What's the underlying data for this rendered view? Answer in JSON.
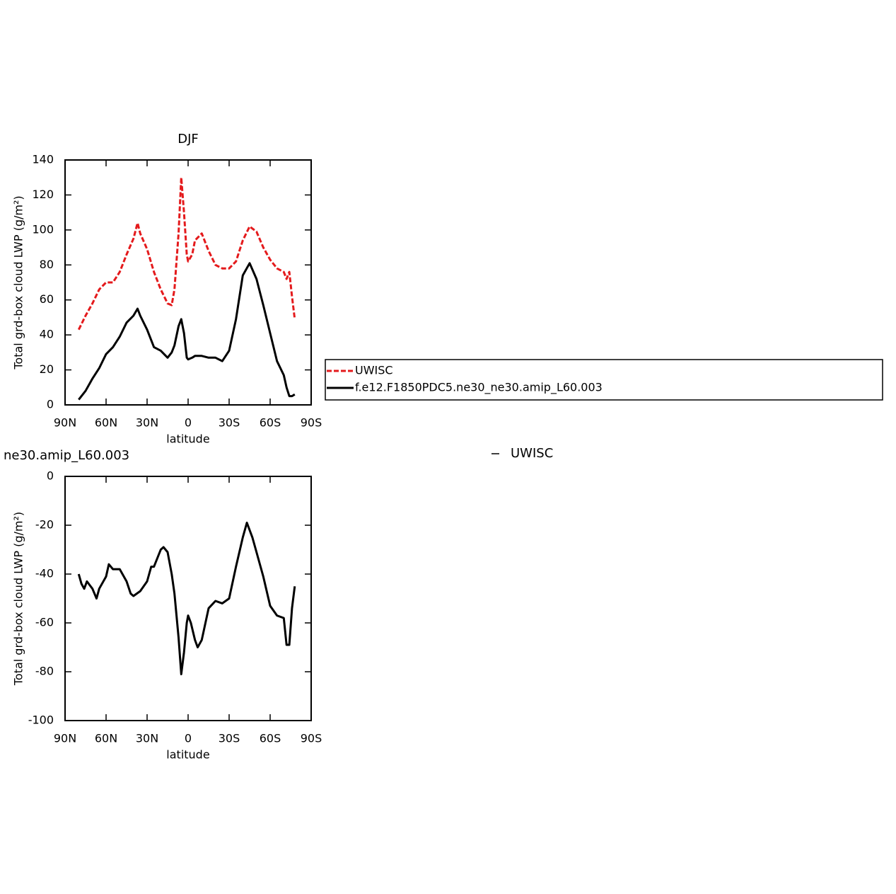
{
  "chart_data": [
    {
      "type": "line",
      "title": "DJF",
      "xlabel": "latitude",
      "ylabel": "Total grd-box cloud LWP (g/m²)",
      "x": [
        80,
        75,
        70,
        65,
        60,
        55,
        50,
        45,
        40,
        37,
        35,
        30,
        25,
        20,
        15,
        12,
        10,
        7,
        5,
        3,
        1,
        0,
        -3,
        -5,
        -10,
        -15,
        -20,
        -25,
        -30,
        -35,
        -40,
        -45,
        -50,
        -55,
        -60,
        -65,
        -70,
        -72,
        -74,
        -76,
        -78
      ],
      "xlim": [
        90,
        -90
      ],
      "xticks": [
        {
          "value": 90,
          "label": "90N"
        },
        {
          "value": 60,
          "label": "60N"
        },
        {
          "value": 30,
          "label": "30N"
        },
        0,
        {
          "value": -30,
          "label": "30S"
        },
        {
          "value": -60,
          "label": "60S"
        },
        {
          "value": -90,
          "label": "90S"
        }
      ],
      "ylim": [
        0,
        140
      ],
      "yticks": [
        0,
        20,
        40,
        60,
        80,
        100,
        120,
        140
      ],
      "legend": "right",
      "series": [
        {
          "name": "UWISC",
          "color": "#e41a1c",
          "dashed": true,
          "values": [
            43,
            51,
            58,
            66,
            70,
            70,
            76,
            86,
            95,
            104,
            98,
            89,
            76,
            66,
            58,
            57,
            66,
            98,
            130,
            110,
            86,
            82,
            86,
            94,
            98,
            88,
            80,
            78,
            78,
            82,
            94,
            102,
            99,
            90,
            83,
            78,
            76,
            72,
            76,
            62,
            49
          ]
        },
        {
          "name": "f.e12.F1850PDC5.ne30_ne30.amip_L60.003",
          "color": "#000000",
          "dashed": false,
          "values": [
            3,
            8,
            15,
            21,
            29,
            33,
            39,
            47,
            51,
            55,
            51,
            43,
            33,
            31,
            27,
            30,
            34,
            45,
            49,
            41,
            27,
            26,
            27,
            28,
            28,
            27,
            27,
            25,
            31,
            49,
            74,
            81,
            72,
            57,
            41,
            25,
            17,
            10,
            5,
            5,
            6
          ]
        }
      ]
    },
    {
      "type": "line",
      "title": "ne30.amip_L60.003",
      "xlabel": "latitude",
      "ylabel": "Total grd-box cloud LWP (g/m²)",
      "x": [
        80,
        78,
        76,
        74,
        70,
        67,
        65,
        60,
        58,
        55,
        50,
        45,
        42,
        40,
        35,
        30,
        27,
        25,
        20,
        18,
        15,
        12,
        10,
        7,
        5,
        3,
        1,
        0,
        -2,
        -5,
        -7,
        -10,
        -15,
        -20,
        -25,
        -30,
        -35,
        -40,
        -43,
        -47,
        -50,
        -55,
        -60,
        -65,
        -70,
        -72,
        -74,
        -76,
        -78
      ],
      "xlim": [
        90,
        -90
      ],
      "xticks": [
        {
          "value": 90,
          "label": "90N"
        },
        {
          "value": 60,
          "label": "60N"
        },
        {
          "value": 30,
          "label": "30N"
        },
        0,
        {
          "value": -30,
          "label": "30S"
        },
        {
          "value": -60,
          "label": "60S"
        },
        {
          "value": -90,
          "label": "90S"
        }
      ],
      "ylim": [
        -100,
        0
      ],
      "yticks": [
        0,
        -20,
        -40,
        -60,
        -80,
        -100
      ],
      "legend": "right",
      "series": [
        {
          "name": "UWISC",
          "color": "#000000",
          "dashed": false,
          "values": [
            -40,
            -44,
            -46,
            -43,
            -46,
            -50,
            -46,
            -41,
            -36,
            -38,
            -38,
            -43,
            -48,
            -49,
            -47,
            -43,
            -37,
            -37,
            -30,
            -29,
            -31,
            -40,
            -48,
            -66,
            -81,
            -72,
            -60,
            -57,
            -60,
            -67,
            -70,
            -67,
            -54,
            -51,
            -52,
            -50,
            -37,
            -25,
            -19,
            -25,
            -31,
            -41,
            -53,
            -57,
            -58,
            -69,
            -69,
            -54,
            -45
          ]
        }
      ]
    }
  ]
}
